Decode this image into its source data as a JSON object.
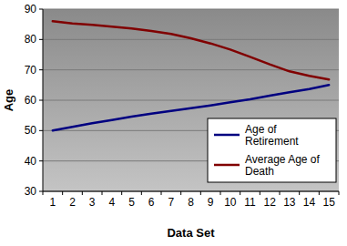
{
  "chart_data": {
    "type": "line",
    "x_label": "Data Set",
    "y_label": "Age",
    "categories": [
      "1",
      "2",
      "3",
      "4",
      "5",
      "6",
      "7",
      "8",
      "9",
      "10",
      "11",
      "12",
      "13",
      "14",
      "15"
    ],
    "series": [
      {
        "name": "Age of Retirement",
        "color": "#000080",
        "values": [
          50,
          51.2,
          52.4,
          53.5,
          54.6,
          55.6,
          56.5,
          57.4,
          58.3,
          59.3,
          60.3,
          61.5,
          62.6,
          63.7,
          65
        ]
      },
      {
        "name": "Average Age of Death",
        "color": "#800000",
        "values": [
          86,
          85.3,
          84.8,
          84.2,
          83.6,
          82.8,
          81.8,
          80.4,
          78.7,
          76.7,
          74.3,
          71.8,
          69.5,
          68,
          66.8
        ]
      }
    ],
    "ylim": [
      30,
      90
    ],
    "yticks": [
      30,
      40,
      50,
      60,
      70,
      80,
      90
    ],
    "grid": true,
    "legend": "bottom-right"
  }
}
